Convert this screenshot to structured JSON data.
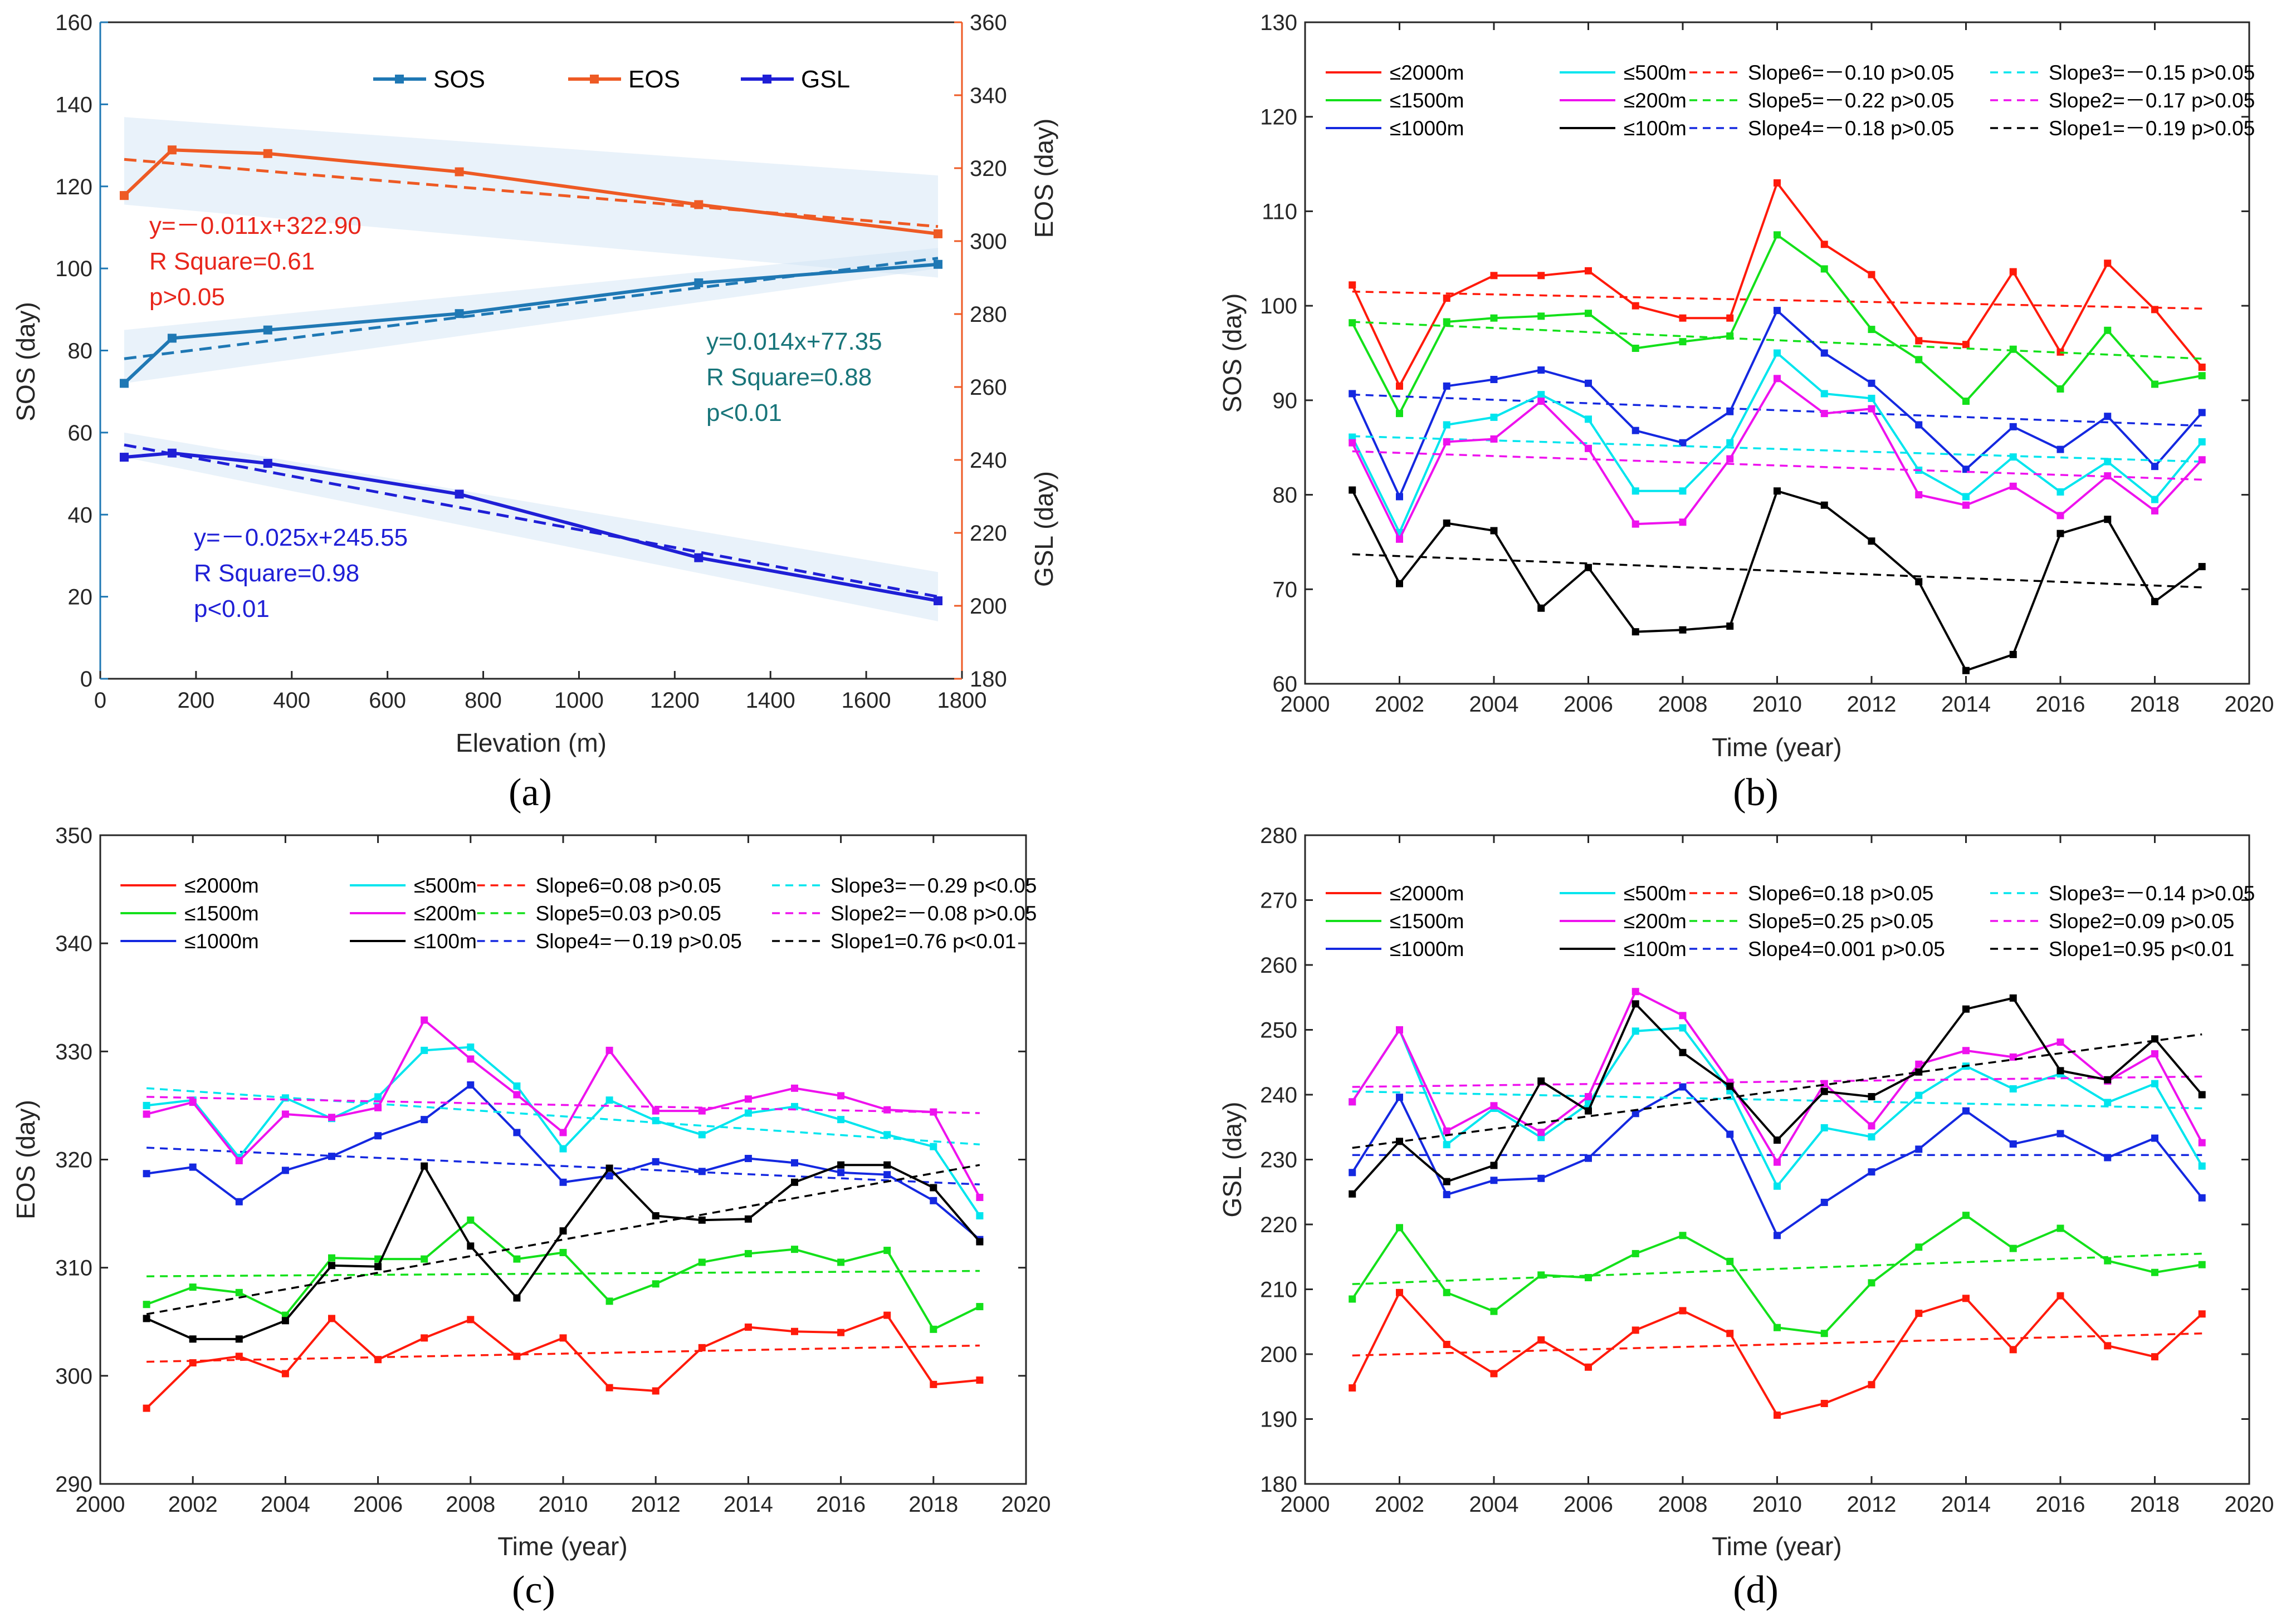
{
  "chart_data": [
    {
      "id": "a",
      "type": "line",
      "caption": "(a)",
      "xlabel": "Elevation (m)",
      "ylabel_left": "SOS (day)",
      "ylabel_right_top": "EOS (day)",
      "ylabel_right_bottom": "GSL (day)",
      "xlim": [
        0,
        1800
      ],
      "xticks": [
        0,
        200,
        400,
        600,
        800,
        1000,
        1200,
        1400,
        1600,
        1800
      ],
      "ylim_left": [
        0,
        160
      ],
      "yticks_left": [
        0,
        20,
        40,
        60,
        80,
        100,
        120,
        140,
        160
      ],
      "ylim_right": [
        180,
        360
      ],
      "yticks_right": [
        180,
        200,
        220,
        240,
        260,
        280,
        300,
        320,
        340,
        360
      ],
      "x": [
        50,
        150,
        350,
        750,
        1250,
        1750
      ],
      "legend": [
        "SOS",
        "EOS",
        "GSL"
      ],
      "series": [
        {
          "name": "SOS",
          "axis": "left",
          "color": "#1f78b4",
          "values": [
            72,
            83,
            85,
            89,
            96.5,
            101
          ],
          "fit": [
            78,
            102.5
          ],
          "band_lo": [
            72,
            100
          ],
          "band_hi": [
            85,
            105
          ]
        },
        {
          "name": "EOS",
          "axis": "right",
          "color": "#ee5a24",
          "values": [
            312.5,
            325,
            324,
            319,
            310,
            302
          ],
          "fit": [
            322.4,
            304
          ],
          "band_lo": [
            310,
            290
          ],
          "band_hi": [
            334,
            318
          ]
        },
        {
          "name": "GSL",
          "axis": "left",
          "color": "#1f1fd6",
          "values": [
            54,
            55,
            52.5,
            45,
            29.5,
            19
          ],
          "fit": [
            57,
            20
          ],
          "band_lo": [
            54,
            14
          ],
          "band_hi": [
            60,
            26
          ]
        }
      ],
      "annotations": [
        {
          "lines": [
            "y=－0.011x+322.90",
            "R Square=0.61",
            "p>0.05"
          ],
          "color": "#e8261b"
        },
        {
          "lines": [
            "y=0.014x+77.35",
            "R Square=0.88",
            "p<0.01"
          ],
          "color": "#18757a"
        },
        {
          "lines": [
            "y=－0.025x+245.55",
            "R Square=0.98",
            "p<0.01"
          ],
          "color": "#1f1fd6"
        }
      ]
    },
    {
      "id": "b",
      "type": "line",
      "caption": "(b)",
      "xlabel": "Time (year)",
      "ylabel": "SOS (day)",
      "xlim": [
        2000,
        2020
      ],
      "xticks": [
        2000,
        2002,
        2004,
        2006,
        2008,
        2010,
        2012,
        2014,
        2016,
        2018,
        2020
      ],
      "ylim": [
        60,
        130
      ],
      "yticks": [
        60,
        70,
        80,
        90,
        100,
        110,
        120,
        130
      ],
      "series": [
        {
          "name": "≤2000m",
          "color": "#ff1a0a",
          "fit": [
            101.5,
            99.7
          ],
          "values": [
            102.2,
            91.5,
            100.8,
            103.2,
            103.2,
            103.7,
            100,
            98.7,
            98.7,
            113,
            106.5,
            103.3,
            96.3,
            95.9,
            103.6,
            95.1,
            104.5,
            99.6,
            93.5
          ]
        },
        {
          "name": "≤1500m",
          "color": "#13e01a",
          "fit": [
            98.3,
            94.4
          ],
          "values": [
            98.2,
            88.6,
            98.3,
            98.7,
            98.9,
            99.2,
            95.5,
            96.2,
            96.8,
            107.5,
            103.9,
            97.5,
            94.3,
            89.9,
            95.4,
            91.2,
            97.4,
            91.7,
            92.6
          ]
        },
        {
          "name": "≤1000m",
          "color": "#1428e0",
          "fit": [
            90.6,
            87.3
          ],
          "values": [
            90.7,
            79.8,
            91.5,
            92.2,
            93.2,
            91.8,
            86.8,
            85.5,
            88.8,
            99.5,
            95,
            91.8,
            87.4,
            82.7,
            87.2,
            84.8,
            88.3,
            83,
            88.7
          ]
        },
        {
          "name": "≤500m",
          "color": "#00e5ee",
          "fit": [
            86.2,
            83.5
          ],
          "values": [
            86.1,
            76,
            87.4,
            88.2,
            90.6,
            88,
            80.4,
            80.4,
            85.5,
            95,
            90.7,
            90.2,
            82.6,
            79.8,
            84,
            80.3,
            83.5,
            79.5,
            85.6
          ]
        },
        {
          "name": "≤200m",
          "color": "#ee12ee",
          "fit": [
            84.6,
            81.6
          ],
          "values": [
            85.5,
            75.3,
            85.6,
            85.9,
            89.9,
            84.9,
            76.9,
            77.1,
            83.8,
            92.3,
            88.6,
            89.1,
            80,
            78.9,
            80.9,
            77.8,
            82,
            78.3,
            83.7
          ]
        },
        {
          "name": "≤100m",
          "color": "#000000",
          "fit": [
            73.7,
            70.2
          ],
          "values": [
            80.5,
            70.6,
            77,
            76.2,
            68,
            72.3,
            65.5,
            65.7,
            66.1,
            80.4,
            78.9,
            75.1,
            70.8,
            61.4,
            63.1,
            75.9,
            77.4,
            68.7,
            72.4
          ]
        }
      ],
      "trend_labels": [
        "Slope6=－0.10 p>0.05",
        "Slope5=－0.22 p>0.05",
        "Slope4=－0.18 p>0.05",
        "Slope3=－0.15 p>0.05",
        "Slope2=－0.17 p>0.05",
        "Slope1=－0.19 p>0.05"
      ]
    },
    {
      "id": "c",
      "type": "line",
      "caption": "(c)",
      "xlabel": "Time (year)",
      "ylabel": "EOS (day)",
      "xlim": [
        2000,
        2020
      ],
      "xticks": [
        2000,
        2002,
        2004,
        2006,
        2008,
        2010,
        2012,
        2014,
        2016,
        2018,
        2020
      ],
      "ylim": [
        290,
        350
      ],
      "yticks": [
        290,
        300,
        310,
        320,
        330,
        340,
        350
      ],
      "series": [
        {
          "name": "≤2000m",
          "color": "#ff1a0a",
          "fit": [
            301.3,
            302.8
          ],
          "values": [
            297,
            301.2,
            301.8,
            300.2,
            305.3,
            301.5,
            303.5,
            305.2,
            301.8,
            303.5,
            298.9,
            298.6,
            302.6,
            304.5,
            304.1,
            304,
            305.6,
            299.2,
            299.6
          ]
        },
        {
          "name": "≤1500m",
          "color": "#13e01a",
          "fit": [
            309.2,
            309.7
          ],
          "values": [
            306.6,
            308.2,
            307.7,
            305.6,
            310.9,
            310.8,
            310.8,
            314.4,
            310.8,
            311.4,
            306.9,
            308.5,
            310.5,
            311.3,
            311.7,
            310.5,
            311.6,
            304.3,
            306.4
          ]
        },
        {
          "name": "≤1000m",
          "color": "#1428e0",
          "fit": [
            321.1,
            317.7
          ],
          "values": [
            318.7,
            319.3,
            316.1,
            319,
            320.3,
            322.2,
            323.7,
            326.9,
            322.5,
            317.9,
            318.5,
            319.8,
            318.9,
            320.1,
            319.7,
            318.8,
            318.6,
            316.2,
            312.6
          ]
        },
        {
          "name": "≤500m",
          "color": "#00e5ee",
          "fit": [
            326.6,
            321.4
          ],
          "values": [
            325,
            325.5,
            320.2,
            325.7,
            323.8,
            325.8,
            330.1,
            330.4,
            326.8,
            321,
            325.5,
            323.6,
            322.3,
            324.3,
            324.9,
            323.7,
            322.3,
            321.2,
            314.8
          ]
        },
        {
          "name": "≤200m",
          "color": "#ee12ee",
          "fit": [
            325.8,
            324.3
          ],
          "values": [
            324.2,
            325.3,
            319.9,
            324.2,
            323.9,
            324.8,
            332.9,
            329.3,
            326,
            322.5,
            330.1,
            324.5,
            324.5,
            325.6,
            326.6,
            325.9,
            324.6,
            324.4,
            316.5
          ]
        },
        {
          "name": "≤100m",
          "color": "#000000",
          "fit": [
            305.7,
            319.5
          ],
          "values": [
            305.3,
            303.4,
            303.4,
            305.1,
            310.2,
            310.1,
            319.4,
            312,
            307.2,
            313.4,
            319.2,
            314.8,
            314.4,
            314.5,
            317.9,
            319.5,
            319.5,
            317.4,
            312.4
          ]
        }
      ],
      "trend_labels": [
        "Slope6=0.08 p>0.05",
        "Slope5=0.03 p>0.05",
        "Slope4=－0.19 p>0.05",
        "Slope3=－0.29 p<0.05",
        "Slope2=－0.08 p>0.05",
        "Slope1=0.76 p<0.01"
      ]
    },
    {
      "id": "d",
      "type": "line",
      "caption": "(d)",
      "xlabel": "Time (year)",
      "ylabel": "GSL (day)",
      "xlim": [
        2000,
        2020
      ],
      "xticks": [
        2000,
        2002,
        2004,
        2006,
        2008,
        2010,
        2012,
        2014,
        2016,
        2018,
        2020
      ],
      "ylim": [
        180,
        280
      ],
      "yticks": [
        180,
        190,
        200,
        210,
        220,
        230,
        240,
        250,
        260,
        270,
        280
      ],
      "series": [
        {
          "name": "≤2000m",
          "color": "#ff1a0a",
          "fit": [
            199.8,
            203.2
          ],
          "values": [
            194.8,
            209.5,
            201.5,
            197,
            202.2,
            198,
            203.7,
            206.7,
            203.2,
            190.6,
            192.4,
            195.3,
            206.3,
            208.6,
            200.7,
            209,
            201.3,
            199.6,
            206.2
          ]
        },
        {
          "name": "≤1500m",
          "color": "#13e01a",
          "fit": [
            210.8,
            215.5
          ],
          "values": [
            208.5,
            219.5,
            209.5,
            206.6,
            212.2,
            211.8,
            215.5,
            218.3,
            214.3,
            204.1,
            203.2,
            211,
            216.5,
            221.4,
            216.3,
            219.4,
            214.4,
            212.6,
            213.8
          ]
        },
        {
          "name": "≤1000m",
          "color": "#1428e0",
          "fit": [
            230.7,
            230.7
          ],
          "values": [
            228,
            239.6,
            224.6,
            226.8,
            227.1,
            230.2,
            237.1,
            241.2,
            233.9,
            218.3,
            223.4,
            228.1,
            231.6,
            237.5,
            232.4,
            234,
            230.3,
            233.3,
            224.1
          ]
        },
        {
          "name": "≤500m",
          "color": "#00e5ee",
          "fit": [
            240.5,
            237.9
          ],
          "values": [
            238.9,
            250,
            232.3,
            237.9,
            233.4,
            238.6,
            249.8,
            250.3,
            240.6,
            225.9,
            234.9,
            233.5,
            239.9,
            244.4,
            240.9,
            243.2,
            238.8,
            241.7,
            229
          ]
        },
        {
          "name": "≤200m",
          "color": "#ee12ee",
          "fit": [
            241.2,
            242.8
          ],
          "values": [
            238.9,
            250,
            234.4,
            238.3,
            234.2,
            239.7,
            255.9,
            252.2,
            241.9,
            229.6,
            241.7,
            235.2,
            244.7,
            246.8,
            245.8,
            248.1,
            242.1,
            246.3,
            232.6
          ]
        },
        {
          "name": "≤100m",
          "color": "#000000",
          "fit": [
            231.8,
            249.3
          ],
          "values": [
            224.7,
            232.8,
            226.6,
            229.1,
            242.1,
            237.5,
            254,
            246.5,
            241.3,
            233,
            240.5,
            239.7,
            243.5,
            253.2,
            254.9,
            243.7,
            242.3,
            248.6,
            240
          ]
        }
      ],
      "trend_labels": [
        "Slope6=0.18 p>0.05",
        "Slope5=0.25 p>0.05",
        "Slope4=0.001 p>0.05",
        "Slope3=－0.14 p>0.05",
        "Slope2=0.09 p>0.05",
        "Slope1=0.95 p<0.01"
      ]
    }
  ]
}
